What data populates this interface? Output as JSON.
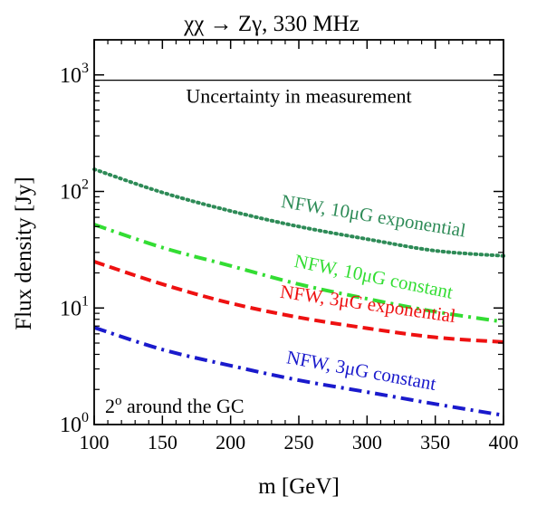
{
  "chart_data": {
    "type": "line",
    "title": "χχ → Zγ,   330 MHz",
    "xlabel": "m [GeV]",
    "ylabel": "Flux density [Jy]",
    "xlim": [
      100,
      400
    ],
    "ylim": [
      1,
      2000
    ],
    "yscale": "log",
    "grid": false,
    "x_ticks": [
      100,
      150,
      200,
      250,
      300,
      350,
      400
    ],
    "x_tick_labels": [
      "100",
      "150",
      "200",
      "250",
      "300",
      "350",
      "400"
    ],
    "y_ticks": [
      {
        "base": "10",
        "exp": "0",
        "value": 1
      },
      {
        "base": "10",
        "exp": "1",
        "value": 10
      },
      {
        "base": "10",
        "exp": "2",
        "value": 100
      },
      {
        "base": "10",
        "exp": "3",
        "value": 1000
      }
    ],
    "x": [
      100,
      150,
      200,
      250,
      300,
      350,
      400
    ],
    "series": [
      {
        "name": "NFW, 10μG exponential",
        "color": "#2e8b57",
        "style": "dotted",
        "values": [
          155,
          98,
          68,
          50,
          39,
          31,
          28
        ]
      },
      {
        "name": "NFW, 10μG constant",
        "color": "#33dd33",
        "style": "dashdot",
        "values": [
          52,
          33,
          23,
          16,
          12,
          9.3,
          7.6
        ]
      },
      {
        "name": "NFW, 3μG exponential",
        "color": "#ee1111",
        "style": "dashed",
        "values": [
          25,
          16,
          11,
          8.3,
          6.7,
          5.6,
          5.1
        ]
      },
      {
        "name": "NFW, 3μG constant",
        "color": "#1a1acc",
        "style": "dashdot",
        "values": [
          6.8,
          4.4,
          3.2,
          2.4,
          1.9,
          1.5,
          1.2
        ]
      }
    ],
    "reference_line": {
      "value": 900,
      "label": "Uncertainty in measurement"
    },
    "annotation": {
      "text": "2",
      "sup": "o",
      "rest": " around the GC"
    }
  }
}
